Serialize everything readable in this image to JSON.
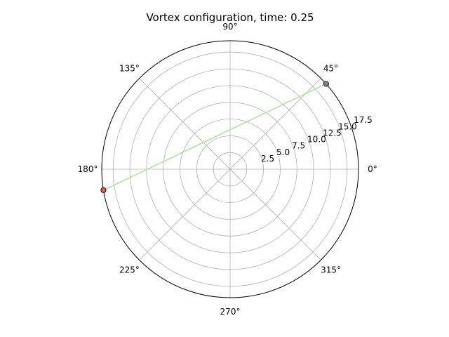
{
  "chart_data": {
    "type": "scatter",
    "projection": "polar",
    "title": "Vortex configuration, time: 0.25",
    "theta_ticks_deg": [
      0,
      45,
      90,
      135,
      180,
      225,
      270,
      315
    ],
    "theta_tick_labels": [
      "0°",
      "45°",
      "90°",
      "135°",
      "180°",
      "225°",
      "270°",
      "315°"
    ],
    "r_ticks": [
      2.5,
      5.0,
      7.5,
      10.0,
      12.5,
      15.0,
      17.5
    ],
    "r_tick_labels": [
      "2.5",
      "5.0",
      "7.5",
      "10.0",
      "12.5",
      "15.0",
      "17.5"
    ],
    "r_label_angle_deg": 22.5,
    "rlim": [
      0,
      19.2
    ],
    "grid": true,
    "connector_line": {
      "color": "#b5e29a",
      "from": {
        "theta_deg": 41.6,
        "r": 19.2
      },
      "to": {
        "theta_deg": 189.4,
        "r": 19.2
      }
    },
    "points": [
      {
        "theta_deg": 41.6,
        "r": 19.2,
        "color": "#808080"
      },
      {
        "theta_deg": 189.4,
        "r": 19.2,
        "color": "#e0624a"
      }
    ]
  }
}
